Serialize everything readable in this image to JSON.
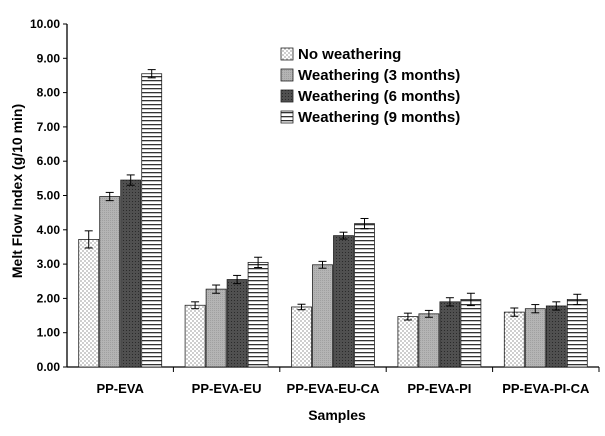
{
  "chart_data": {
    "type": "bar",
    "title": "",
    "xlabel": "Samples",
    "ylabel": "Melt Flow Index (g/10 min)",
    "ylim": [
      0,
      10
    ],
    "yticks": [
      "0.00",
      "1.00",
      "2.00",
      "3.00",
      "4.00",
      "5.00",
      "6.00",
      "7.00",
      "8.00",
      "9.00",
      "10.00"
    ],
    "categories": [
      "PP-EVA",
      "PP-EVA-EU",
      "PP-EVA-EU-CA",
      "PP-EVA-PI",
      "PP-EVA-PI-CA"
    ],
    "series": [
      {
        "name": "No weathering",
        "pattern": "dots",
        "values": [
          3.72,
          1.8,
          1.75,
          1.47,
          1.6
        ],
        "errors": [
          0.25,
          0.1,
          0.08,
          0.1,
          0.12
        ]
      },
      {
        "name": "Weathering (3 months)",
        "pattern": "light-gray",
        "values": [
          4.97,
          2.27,
          2.98,
          1.55,
          1.7
        ],
        "errors": [
          0.12,
          0.12,
          0.1,
          0.1,
          0.12
        ]
      },
      {
        "name": "Weathering (6 months)",
        "pattern": "dark-gray",
        "values": [
          5.45,
          2.55,
          3.83,
          1.9,
          1.78
        ],
        "errors": [
          0.15,
          0.12,
          0.1,
          0.12,
          0.12
        ]
      },
      {
        "name": "Weathering (9 months)",
        "pattern": "horizontal-lines",
        "values": [
          8.55,
          3.05,
          4.18,
          1.97,
          1.97
        ],
        "errors": [
          0.12,
          0.15,
          0.15,
          0.18,
          0.15
        ]
      }
    ],
    "grid": false,
    "legend_position": "top-right"
  }
}
